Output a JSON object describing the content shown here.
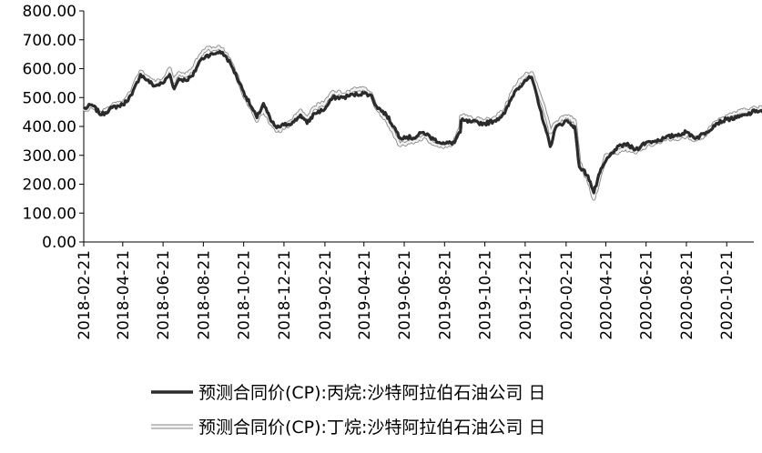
{
  "chart_data": {
    "type": "line",
    "title": "",
    "xlabel": "",
    "ylabel": "",
    "ylim": [
      0,
      800
    ],
    "y_ticks": [
      "0.00",
      "100.00",
      "200.00",
      "300.00",
      "400.00",
      "500.00",
      "600.00",
      "700.00",
      "800.00"
    ],
    "x_tick_labels": [
      "2018-02-21",
      "2018-04-21",
      "2018-06-21",
      "2018-08-21",
      "2018-10-21",
      "2018-12-21",
      "2019-02-21",
      "2019-04-21",
      "2019-06-21",
      "2019-08-21",
      "2019-10-21",
      "2019-12-21",
      "2020-02-21",
      "2020-04-21",
      "2020-06-21",
      "2020-08-21",
      "2020-10-21"
    ],
    "x_range": [
      "2018-02-21",
      "2020-12-31"
    ],
    "grid": false,
    "legend_position": "bottom",
    "series": [
      {
        "name": "预测合同价(CP):丙烷:沙特阿拉伯石油公司 日",
        "color": "#2b2b2b",
        "style": "dark",
        "points": [
          [
            "2018-02-21",
            460
          ],
          [
            "2018-03-05",
            475
          ],
          [
            "2018-03-20",
            440
          ],
          [
            "2018-04-05",
            465
          ],
          [
            "2018-04-21",
            475
          ],
          [
            "2018-05-05",
            510
          ],
          [
            "2018-05-18",
            580
          ],
          [
            "2018-05-28",
            560
          ],
          [
            "2018-06-08",
            540
          ],
          [
            "2018-06-21",
            550
          ],
          [
            "2018-07-01",
            580
          ],
          [
            "2018-07-08",
            530
          ],
          [
            "2018-07-15",
            565
          ],
          [
            "2018-07-25",
            560
          ],
          [
            "2018-08-05",
            575
          ],
          [
            "2018-08-15",
            625
          ],
          [
            "2018-08-25",
            645
          ],
          [
            "2018-09-05",
            650
          ],
          [
            "2018-09-15",
            660
          ],
          [
            "2018-09-25",
            640
          ],
          [
            "2018-10-05",
            600
          ],
          [
            "2018-10-21",
            520
          ],
          [
            "2018-11-01",
            470
          ],
          [
            "2018-11-10",
            430
          ],
          [
            "2018-11-20",
            480
          ],
          [
            "2018-12-01",
            420
          ],
          [
            "2018-12-10",
            395
          ],
          [
            "2018-12-21",
            405
          ],
          [
            "2019-01-05",
            415
          ],
          [
            "2019-01-15",
            440
          ],
          [
            "2019-01-25",
            410
          ],
          [
            "2019-02-05",
            445
          ],
          [
            "2019-02-21",
            460
          ],
          [
            "2019-03-05",
            500
          ],
          [
            "2019-03-20",
            500
          ],
          [
            "2019-04-05",
            510
          ],
          [
            "2019-04-21",
            515
          ],
          [
            "2019-05-01",
            510
          ],
          [
            "2019-05-10",
            470
          ],
          [
            "2019-05-25",
            440
          ],
          [
            "2019-06-05",
            400
          ],
          [
            "2019-06-15",
            360
          ],
          [
            "2019-06-21",
            365
          ],
          [
            "2019-07-05",
            360
          ],
          [
            "2019-07-20",
            380
          ],
          [
            "2019-08-05",
            355
          ],
          [
            "2019-08-21",
            340
          ],
          [
            "2019-09-05",
            345
          ],
          [
            "2019-09-10",
            370
          ],
          [
            "2019-09-14",
            380
          ],
          [
            "2019-09-15",
            420
          ],
          [
            "2019-10-01",
            415
          ],
          [
            "2019-10-21",
            410
          ],
          [
            "2019-11-05",
            420
          ],
          [
            "2019-11-20",
            445
          ],
          [
            "2019-12-05",
            520
          ],
          [
            "2019-12-21",
            560
          ],
          [
            "2019-12-31",
            570
          ],
          [
            "2020-01-10",
            480
          ],
          [
            "2020-01-20",
            400
          ],
          [
            "2020-01-28",
            330
          ],
          [
            "2020-02-05",
            395
          ],
          [
            "2020-02-21",
            420
          ],
          [
            "2020-03-05",
            400
          ],
          [
            "2020-03-12",
            260
          ],
          [
            "2020-03-25",
            230
          ],
          [
            "2020-04-03",
            170
          ],
          [
            "2020-04-12",
            240
          ],
          [
            "2020-04-21",
            280
          ],
          [
            "2020-05-05",
            320
          ],
          [
            "2020-05-20",
            340
          ],
          [
            "2020-06-05",
            320
          ],
          [
            "2020-06-21",
            345
          ],
          [
            "2020-07-05",
            350
          ],
          [
            "2020-07-20",
            360
          ],
          [
            "2020-08-05",
            370
          ],
          [
            "2020-08-21",
            380
          ],
          [
            "2020-09-05",
            360
          ],
          [
            "2020-09-20",
            380
          ],
          [
            "2020-10-05",
            410
          ],
          [
            "2020-10-21",
            425
          ],
          [
            "2020-11-05",
            430
          ],
          [
            "2020-11-20",
            440
          ],
          [
            "2020-12-05",
            455
          ],
          [
            "2020-12-20",
            450
          ],
          [
            "2020-12-31",
            460
          ]
        ]
      },
      {
        "name": "预测合同价(CP):丁烷:沙特阿拉伯石油公司 日",
        "color": "#d0d0d0",
        "style": "light",
        "points": [
          [
            "2018-02-21",
            455
          ],
          [
            "2018-03-05",
            470
          ],
          [
            "2018-03-20",
            445
          ],
          [
            "2018-04-05",
            470
          ],
          [
            "2018-04-21",
            480
          ],
          [
            "2018-05-05",
            520
          ],
          [
            "2018-05-18",
            590
          ],
          [
            "2018-05-28",
            570
          ],
          [
            "2018-06-08",
            550
          ],
          [
            "2018-06-21",
            560
          ],
          [
            "2018-07-01",
            600
          ],
          [
            "2018-07-08",
            555
          ],
          [
            "2018-07-15",
            585
          ],
          [
            "2018-07-25",
            575
          ],
          [
            "2018-08-05",
            600
          ],
          [
            "2018-08-15",
            640
          ],
          [
            "2018-08-25",
            665
          ],
          [
            "2018-09-05",
            670
          ],
          [
            "2018-09-15",
            670
          ],
          [
            "2018-09-25",
            650
          ],
          [
            "2018-10-05",
            605
          ],
          [
            "2018-10-21",
            510
          ],
          [
            "2018-11-01",
            465
          ],
          [
            "2018-11-10",
            420
          ],
          [
            "2018-11-20",
            460
          ],
          [
            "2018-12-01",
            410
          ],
          [
            "2018-12-10",
            385
          ],
          [
            "2018-12-21",
            395
          ],
          [
            "2019-01-05",
            425
          ],
          [
            "2019-01-15",
            455
          ],
          [
            "2019-01-25",
            430
          ],
          [
            "2019-02-05",
            465
          ],
          [
            "2019-02-21",
            480
          ],
          [
            "2019-03-05",
            520
          ],
          [
            "2019-03-20",
            510
          ],
          [
            "2019-04-05",
            525
          ],
          [
            "2019-04-21",
            530
          ],
          [
            "2019-05-01",
            515
          ],
          [
            "2019-05-10",
            465
          ],
          [
            "2019-05-25",
            425
          ],
          [
            "2019-06-05",
            380
          ],
          [
            "2019-06-15",
            335
          ],
          [
            "2019-06-21",
            340
          ],
          [
            "2019-07-05",
            345
          ],
          [
            "2019-07-20",
            365
          ],
          [
            "2019-08-05",
            340
          ],
          [
            "2019-08-21",
            335
          ],
          [
            "2019-09-05",
            345
          ],
          [
            "2019-09-10",
            375
          ],
          [
            "2019-09-14",
            395
          ],
          [
            "2019-09-15",
            435
          ],
          [
            "2019-10-01",
            425
          ],
          [
            "2019-10-21",
            420
          ],
          [
            "2019-11-05",
            430
          ],
          [
            "2019-11-20",
            455
          ],
          [
            "2019-12-05",
            535
          ],
          [
            "2019-12-21",
            575
          ],
          [
            "2019-12-31",
            585
          ],
          [
            "2020-01-10",
            520
          ],
          [
            "2020-01-20",
            450
          ],
          [
            "2020-01-28",
            380
          ],
          [
            "2020-02-05",
            410
          ],
          [
            "2020-02-21",
            435
          ],
          [
            "2020-03-05",
            420
          ],
          [
            "2020-03-12",
            270
          ],
          [
            "2020-03-25",
            220
          ],
          [
            "2020-04-03",
            150
          ],
          [
            "2020-04-12",
            230
          ],
          [
            "2020-04-21",
            300
          ],
          [
            "2020-05-05",
            310
          ],
          [
            "2020-05-20",
            325
          ],
          [
            "2020-06-05",
            310
          ],
          [
            "2020-06-21",
            335
          ],
          [
            "2020-07-05",
            345
          ],
          [
            "2020-07-20",
            355
          ],
          [
            "2020-08-05",
            360
          ],
          [
            "2020-08-21",
            370
          ],
          [
            "2020-09-05",
            355
          ],
          [
            "2020-09-20",
            375
          ],
          [
            "2020-10-05",
            415
          ],
          [
            "2020-10-21",
            435
          ],
          [
            "2020-11-05",
            445
          ],
          [
            "2020-11-20",
            455
          ],
          [
            "2020-12-05",
            460
          ],
          [
            "2020-12-20",
            460
          ],
          [
            "2020-12-31",
            465
          ]
        ]
      }
    ]
  }
}
